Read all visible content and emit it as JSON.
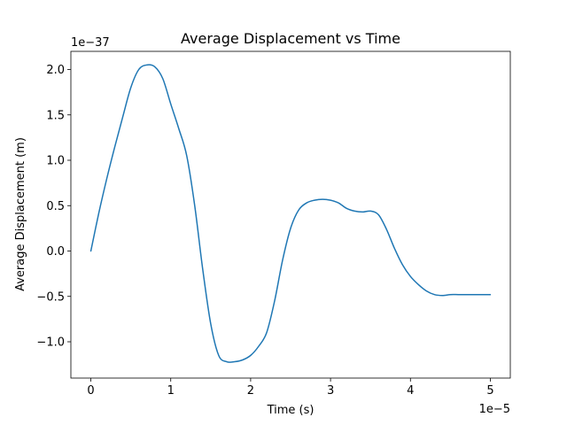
{
  "chart_data": {
    "type": "line",
    "title": "Average Displacement vs Time",
    "xlabel": "Time (s)",
    "ylabel": "Average Displacement (m)",
    "x_offset_label": "1e−5",
    "y_offset_label": "1e−37",
    "xlim": [
      -0.25,
      5.25
    ],
    "ylim": [
      -1.4,
      2.2
    ],
    "x_ticks": [
      0,
      1,
      2,
      3,
      4,
      5
    ],
    "x_tick_labels": [
      "0",
      "1",
      "2",
      "3",
      "4",
      "5"
    ],
    "y_ticks": [
      -1.0,
      -0.5,
      0.0,
      0.5,
      1.0,
      1.5,
      2.0
    ],
    "y_tick_labels": [
      "−1.0",
      "−0.5",
      "0.0",
      "0.5",
      "1.0",
      "1.5",
      "2.0"
    ],
    "grid": false,
    "line_color": "#1f77b4",
    "series": [
      {
        "x": [
          0.0,
          0.1,
          0.2,
          0.3,
          0.4,
          0.5,
          0.6,
          0.7,
          0.8,
          0.9,
          1.0,
          1.1,
          1.2,
          1.3,
          1.4,
          1.5,
          1.6,
          1.7,
          1.8,
          1.9,
          2.0,
          2.1,
          2.2,
          2.3,
          2.4,
          2.5,
          2.6,
          2.7,
          2.8,
          2.9,
          3.0,
          3.1,
          3.2,
          3.3,
          3.4,
          3.5,
          3.6,
          3.7,
          3.8,
          3.9,
          4.0,
          4.1,
          4.2,
          4.3,
          4.4,
          4.5,
          4.6,
          4.7,
          4.8,
          4.9,
          5.0
        ],
        "values": [
          0.0,
          0.42,
          0.8,
          1.15,
          1.48,
          1.8,
          2.0,
          2.05,
          2.03,
          1.9,
          1.62,
          1.35,
          1.05,
          0.5,
          -0.2,
          -0.8,
          -1.15,
          -1.22,
          -1.22,
          -1.2,
          -1.15,
          -1.05,
          -0.9,
          -0.55,
          -0.1,
          0.25,
          0.45,
          0.53,
          0.56,
          0.57,
          0.56,
          0.53,
          0.47,
          0.44,
          0.43,
          0.44,
          0.4,
          0.24,
          0.03,
          -0.15,
          -0.28,
          -0.37,
          -0.44,
          -0.48,
          -0.49,
          -0.48,
          -0.48,
          -0.48,
          -0.48,
          -0.48,
          -0.48
        ]
      }
    ]
  }
}
